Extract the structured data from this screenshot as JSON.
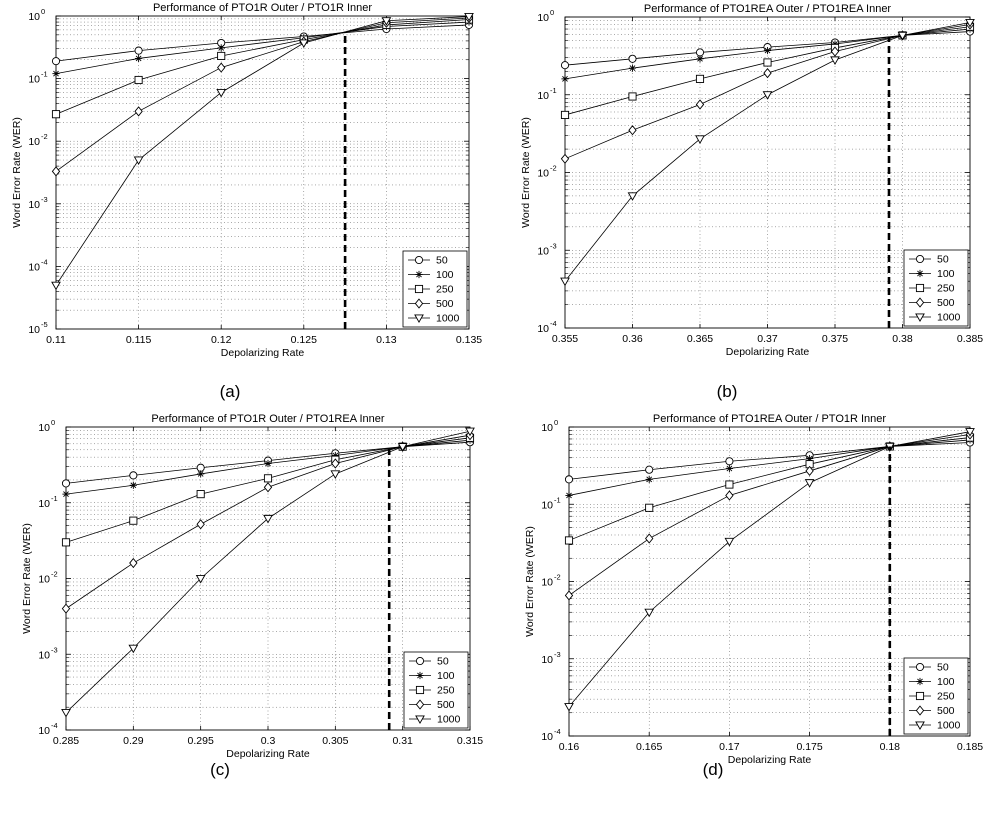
{
  "chart_data": [
    {
      "type": "line",
      "panel": "a",
      "caption": "(a)",
      "title": "Performance of PTO1R Outer / PTO1R Inner",
      "xlabel": "Depolarizing Rate",
      "ylabel": "Word Error Rate (WER)",
      "xscale": "linear",
      "yscale": "log",
      "xlim": [
        0.11,
        0.135
      ],
      "ylim": [
        1e-05,
        1
      ],
      "xticks": [
        0.11,
        0.115,
        0.12,
        0.125,
        0.13,
        0.135
      ],
      "xtick_labels": [
        "0.11",
        "0.115",
        "0.12",
        "0.125",
        "0.13",
        "0.135"
      ],
      "yticks": [
        1e-05,
        0.0001,
        0.001,
        0.01,
        0.1,
        1
      ],
      "ytick_labels": [
        [
          "10",
          "-5"
        ],
        [
          "10",
          "-4"
        ],
        [
          "10",
          "-3"
        ],
        [
          "10",
          "-2"
        ],
        [
          "10",
          "-1"
        ],
        [
          "10",
          "0"
        ]
      ],
      "grid": true,
      "legend_position": "bottom-right",
      "threshold_x": 0.1275,
      "x": [
        0.11,
        0.115,
        0.12,
        0.125,
        0.13,
        0.135
      ],
      "series": [
        {
          "name": "50",
          "marker": "circle",
          "values": [
            0.19,
            0.28,
            0.37,
            0.47,
            0.62,
            0.72
          ]
        },
        {
          "name": "100",
          "marker": "star",
          "values": [
            0.12,
            0.21,
            0.31,
            0.45,
            0.68,
            0.8
          ]
        },
        {
          "name": "250",
          "marker": "square",
          "values": [
            0.027,
            0.095,
            0.23,
            0.42,
            0.72,
            0.88
          ]
        },
        {
          "name": "500",
          "marker": "diamond",
          "values": [
            0.0033,
            0.03,
            0.15,
            0.39,
            0.78,
            0.93
          ]
        },
        {
          "name": "1000",
          "marker": "triangle-down",
          "values": [
            5e-05,
            0.005,
            0.06,
            0.37,
            0.84,
            0.98
          ]
        }
      ]
    },
    {
      "type": "line",
      "panel": "b",
      "caption": "(b)",
      "title": "Performance of PTO1REA Outer / PTO1REA Inner",
      "xlabel": "Depolarizing Rate",
      "ylabel": "Word Error Rate (WER)",
      "xscale": "linear",
      "yscale": "log",
      "xlim": [
        0.355,
        0.385
      ],
      "ylim": [
        0.0001,
        1
      ],
      "xticks": [
        0.355,
        0.36,
        0.365,
        0.37,
        0.375,
        0.38,
        0.385
      ],
      "xtick_labels": [
        "0.355",
        "0.36",
        "0.365",
        "0.37",
        "0.375",
        "0.38",
        "0.385"
      ],
      "yticks": [
        0.0001,
        0.001,
        0.01,
        0.1,
        1
      ],
      "ytick_labels": [
        [
          "10",
          "-4"
        ],
        [
          "10",
          "-3"
        ],
        [
          "10",
          "-2"
        ],
        [
          "10",
          "-1"
        ],
        [
          "10",
          "0"
        ]
      ],
      "grid": true,
      "legend_position": "bottom-right",
      "threshold_x": 0.379,
      "x": [
        0.355,
        0.36,
        0.365,
        0.37,
        0.375,
        0.38,
        0.385
      ],
      "series": [
        {
          "name": "50",
          "marker": "circle",
          "values": [
            0.24,
            0.29,
            0.35,
            0.41,
            0.47,
            0.58,
            0.65
          ]
        },
        {
          "name": "100",
          "marker": "star",
          "values": [
            0.16,
            0.22,
            0.29,
            0.37,
            0.45,
            0.58,
            0.7
          ]
        },
        {
          "name": "250",
          "marker": "square",
          "values": [
            0.055,
            0.095,
            0.16,
            0.26,
            0.4,
            0.58,
            0.75
          ]
        },
        {
          "name": "500",
          "marker": "diamond",
          "values": [
            0.015,
            0.035,
            0.075,
            0.19,
            0.36,
            0.58,
            0.8
          ]
        },
        {
          "name": "1000",
          "marker": "triangle-down",
          "values": [
            0.0004,
            0.005,
            0.027,
            0.1,
            0.28,
            0.58,
            0.85
          ]
        }
      ]
    },
    {
      "type": "line",
      "panel": "c",
      "caption": "(c)",
      "title": "Performance of PTO1R Outer / PTO1REA Inner",
      "xlabel": "Depolarizing Rate",
      "ylabel": "Word Error Rate (WER)",
      "xscale": "linear",
      "yscale": "log",
      "xlim": [
        0.285,
        0.315
      ],
      "ylim": [
        0.0001,
        1
      ],
      "xticks": [
        0.285,
        0.29,
        0.295,
        0.3,
        0.305,
        0.31,
        0.315
      ],
      "xtick_labels": [
        "0.285",
        "0.29",
        "0.295",
        "0.3",
        "0.305",
        "0.31",
        "0.315"
      ],
      "yticks": [
        0.0001,
        0.001,
        0.01,
        0.1,
        1
      ],
      "ytick_labels": [
        [
          "10",
          "-4"
        ],
        [
          "10",
          "-3"
        ],
        [
          "10",
          "-2"
        ],
        [
          "10",
          "-1"
        ],
        [
          "10",
          "0"
        ]
      ],
      "grid": true,
      "legend_position": "bottom-right",
      "threshold_x": 0.309,
      "x": [
        0.285,
        0.29,
        0.295,
        0.3,
        0.305,
        0.31,
        0.315
      ],
      "series": [
        {
          "name": "50",
          "marker": "circle",
          "values": [
            0.18,
            0.23,
            0.29,
            0.36,
            0.45,
            0.55,
            0.63
          ]
        },
        {
          "name": "100",
          "marker": "star",
          "values": [
            0.13,
            0.17,
            0.24,
            0.33,
            0.42,
            0.55,
            0.67
          ]
        },
        {
          "name": "250",
          "marker": "square",
          "values": [
            0.03,
            0.058,
            0.13,
            0.21,
            0.37,
            0.55,
            0.72
          ]
        },
        {
          "name": "500",
          "marker": "diamond",
          "values": [
            0.004,
            0.016,
            0.052,
            0.16,
            0.33,
            0.55,
            0.78
          ]
        },
        {
          "name": "1000",
          "marker": "triangle-down",
          "values": [
            0.00017,
            0.0012,
            0.01,
            0.062,
            0.24,
            0.55,
            0.88
          ]
        }
      ]
    },
    {
      "type": "line",
      "panel": "d",
      "caption": "(d)",
      "title": "Performance of PTO1REA Outer / PTO1R Inner",
      "xlabel": "Depolarizing Rate",
      "ylabel": "Word Error Rate (WER)",
      "xscale": "linear",
      "yscale": "log",
      "xlim": [
        0.16,
        0.185
      ],
      "ylim": [
        0.0001,
        1
      ],
      "xticks": [
        0.16,
        0.165,
        0.17,
        0.175,
        0.18,
        0.185
      ],
      "xtick_labels": [
        "0.16",
        "0.165",
        "0.17",
        "0.175",
        "0.18",
        "0.185"
      ],
      "yticks": [
        0.0001,
        0.001,
        0.01,
        0.1,
        1
      ],
      "ytick_labels": [
        [
          "10",
          "-4"
        ],
        [
          "10",
          "-3"
        ],
        [
          "10",
          "-2"
        ],
        [
          "10",
          "-1"
        ],
        [
          "10",
          "0"
        ]
      ],
      "grid": true,
      "legend_position": "bottom-right",
      "threshold_x": 0.18,
      "x": [
        0.16,
        0.165,
        0.17,
        0.175,
        0.18,
        0.185
      ],
      "series": [
        {
          "name": "50",
          "marker": "circle",
          "values": [
            0.21,
            0.28,
            0.36,
            0.43,
            0.56,
            0.63
          ]
        },
        {
          "name": "100",
          "marker": "star",
          "values": [
            0.13,
            0.21,
            0.29,
            0.39,
            0.56,
            0.68
          ]
        },
        {
          "name": "250",
          "marker": "square",
          "values": [
            0.034,
            0.09,
            0.18,
            0.33,
            0.56,
            0.73
          ]
        },
        {
          "name": "500",
          "marker": "diamond",
          "values": [
            0.0066,
            0.036,
            0.13,
            0.27,
            0.56,
            0.8
          ]
        },
        {
          "name": "1000",
          "marker": "triangle-down",
          "values": [
            0.00024,
            0.004,
            0.033,
            0.19,
            0.56,
            0.87
          ]
        }
      ]
    }
  ]
}
